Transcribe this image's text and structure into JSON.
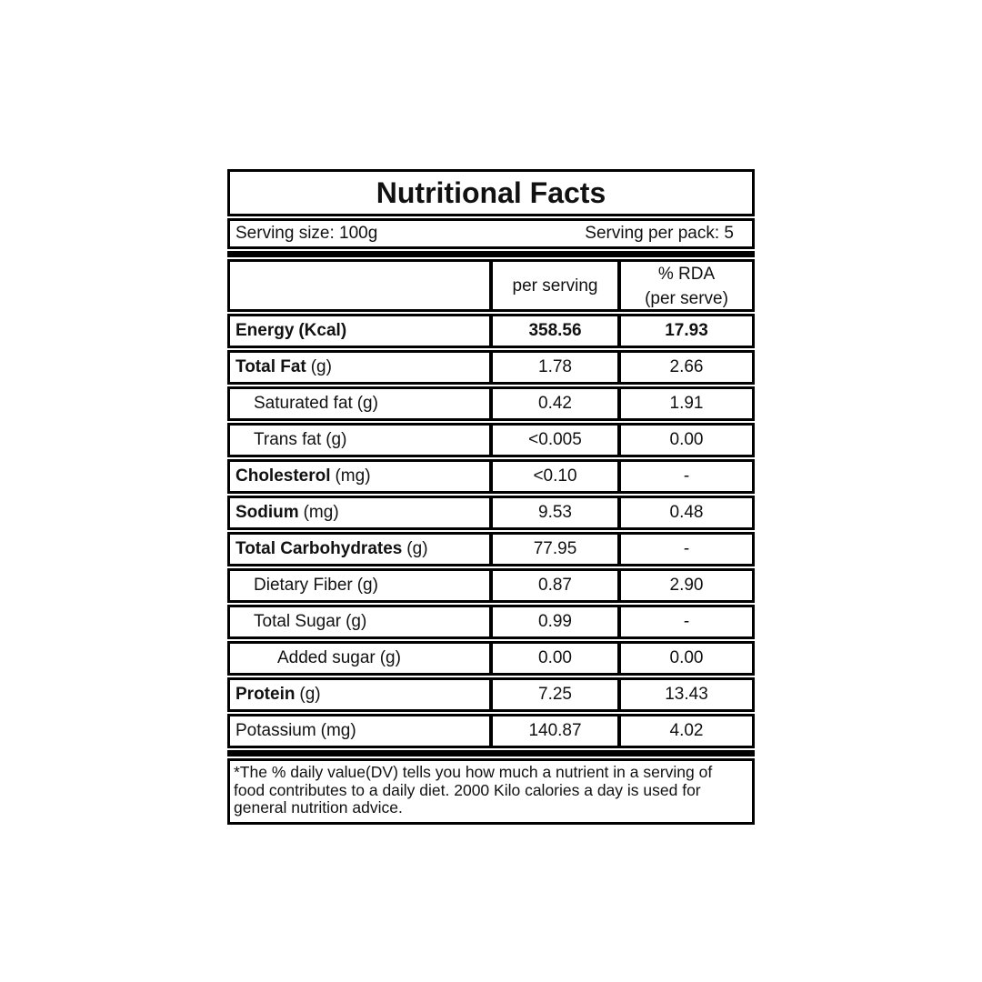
{
  "title": "Nutritional Facts",
  "serving": {
    "size_label": "Serving size: 100g",
    "pack_label": "Serving per pack: 5"
  },
  "header": {
    "nutrient_col": "",
    "per_serving_col": "per serving",
    "rda_col_line1": "% RDA",
    "rda_col_line2": "(per serve)"
  },
  "rows": [
    {
      "name": "Energy",
      "unit": "(Kcal)",
      "per_serving": "358.56",
      "rda": "17.93"
    },
    {
      "name": "Total Fat",
      "unit": "(g)",
      "per_serving": "1.78",
      "rda": "2.66"
    },
    {
      "name": "Saturated fat",
      "unit": "(g)",
      "per_serving": "0.42",
      "rda": "1.91"
    },
    {
      "name": "Trans fat",
      "unit": "(g)",
      "per_serving": "<0.005",
      "rda": "0.00"
    },
    {
      "name": "Cholesterol",
      "unit": "(mg)",
      "per_serving": "<0.10",
      "rda": "-"
    },
    {
      "name": "Sodium",
      "unit": "(mg)",
      "per_serving": "9.53",
      "rda": "0.48"
    },
    {
      "name": "Total Carbohydrates",
      "unit": "(g)",
      "per_serving": "77.95",
      "rda": "-"
    },
    {
      "name": "Dietary Fiber",
      "unit": "(g)",
      "per_serving": "0.87",
      "rda": "2.90"
    },
    {
      "name": "Total Sugar",
      "unit": "(g)",
      "per_serving": "0.99",
      "rda": "-"
    },
    {
      "name": "Added sugar",
      "unit": "(g)",
      "per_serving": "0.00",
      "rda": "0.00"
    },
    {
      "name": "Protein",
      "unit": "(g)",
      "per_serving": "7.25",
      "rda": "13.43"
    },
    {
      "name": "Potassium",
      "unit": "(mg)",
      "per_serving": "140.87",
      "rda": "4.02"
    }
  ],
  "footnote": "*The % daily value(DV) tells you how much a nutrient in a serving of food contributes to a daily diet. 2000 Kilo calories a day is used for general nutrition advice."
}
